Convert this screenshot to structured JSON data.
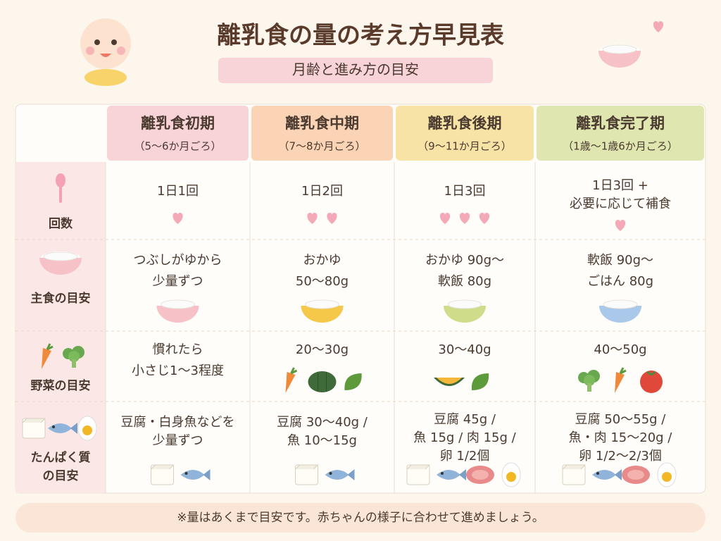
{
  "header": {
    "title": "離乳食の量の考え方早見表",
    "subtitle": "月齢と進み方の目安"
  },
  "table": {
    "columns": [
      {
        "name": "離乳食初期",
        "sub": "（5〜6か月ごろ）"
      },
      {
        "name": "離乳食中期",
        "sub": "（7〜8か月ごろ）"
      },
      {
        "name": "離乳食後期",
        "sub": "（9〜11か月ごろ）"
      },
      {
        "name": "離乳食完了期",
        "sub": "（1歳〜1歳6か月ごろ）"
      }
    ],
    "rows": [
      {
        "label": [
          "回数"
        ],
        "cells": [
          [
            "1日1回"
          ],
          [
            "1日2回"
          ],
          [
            "1日3回"
          ],
          [
            "1日3回 +",
            "必要に応じて補食"
          ]
        ]
      },
      {
        "label": [
          "主食の目安"
        ],
        "cells": [
          [
            "つぶしがゆから",
            "少量ずつ"
          ],
          [
            "おかゆ",
            "50〜80g"
          ],
          [
            "おかゆ 90g〜",
            "軟飯 80g"
          ],
          [
            "軟飯 90g〜",
            "ごはん 80g"
          ]
        ]
      },
      {
        "label": [
          "野菜の目安"
        ],
        "cells": [
          [
            "慣れたら",
            "小さじ1〜3程度"
          ],
          [
            "20〜30g"
          ],
          [
            "30〜40g"
          ],
          [
            "40〜50g"
          ]
        ]
      },
      {
        "label": [
          "たんぱく質",
          "の目安"
        ],
        "cells": [
          [
            "豆腐・白身魚などを",
            "少量ずつ"
          ],
          [
            "豆腐 30〜40g /",
            "魚 10〜15g"
          ],
          [
            "豆腐 45g /",
            "魚 15g / 肉 15g /",
            "卵 1/2個"
          ],
          [
            "豆腐 50〜55g /",
            "魚・肉 15〜20g /",
            "卵 1/2〜2/3個"
          ]
        ]
      }
    ]
  },
  "footer": {
    "note": "※量はあくまで目安です。赤ちゃんの様子に合わせて進めましょう。"
  }
}
